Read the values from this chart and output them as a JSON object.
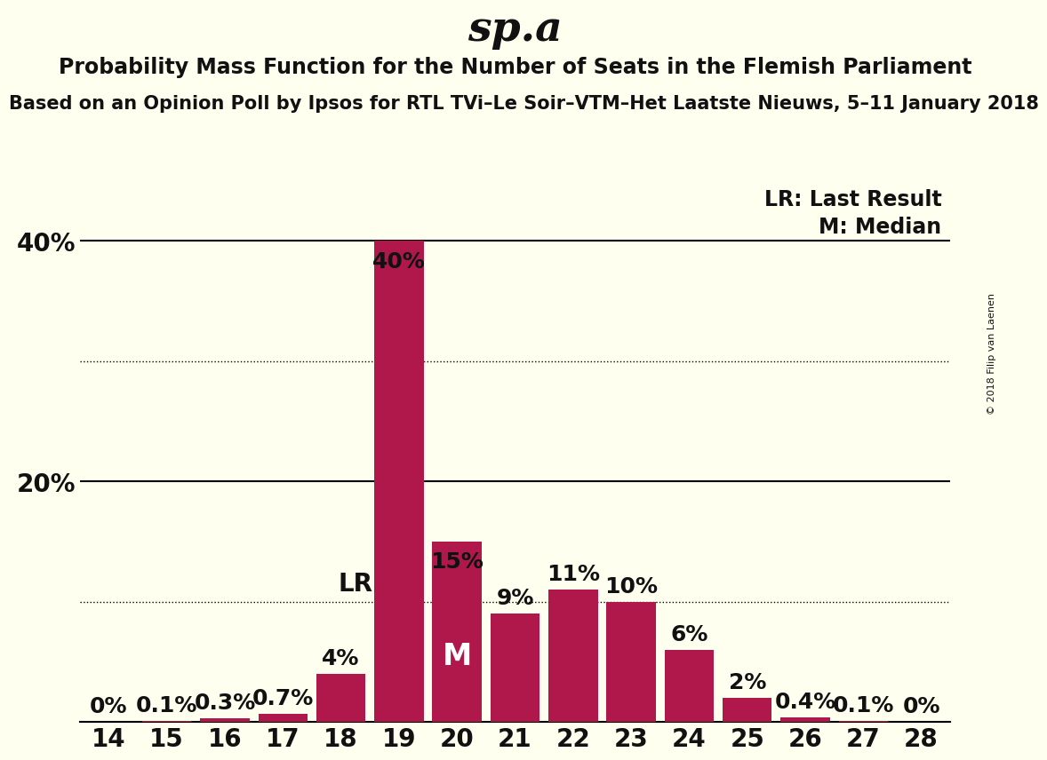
{
  "title": "sp.a",
  "subtitle": "Probability Mass Function for the Number of Seats in the Flemish Parliament",
  "subtitle2": "Based on an Opinion Poll by Ipsos for RTL TVi–Le Soir–VTM–Het Laatste Nieuws, 5–11 January 2018",
  "copyright": "© 2018 Filip van Laenen",
  "seats": [
    14,
    15,
    16,
    17,
    18,
    19,
    20,
    21,
    22,
    23,
    24,
    25,
    26,
    27,
    28
  ],
  "prob_labels": [
    "0%",
    "0.1%",
    "0.3%",
    "0.7%",
    "4%",
    "40%",
    "15%",
    "9%",
    "11%",
    "10%",
    "6%",
    "2%",
    "0.4%",
    "0.1%",
    "0%"
  ],
  "probabilities": [
    0.0,
    0.1,
    0.3,
    0.7,
    4.0,
    40.0,
    15.0,
    9.0,
    11.0,
    10.0,
    6.0,
    2.0,
    0.4,
    0.1,
    0.0
  ],
  "bar_color": "#B0174A",
  "background_color": "#FFFFF0",
  "text_color": "#111111",
  "lr_seat": 19,
  "median_seat": 20,
  "lr_label": "LR",
  "median_label": "M",
  "legend_lr": "LR: Last Result",
  "legend_m": "M: Median",
  "ylim": [
    0,
    45
  ],
  "dotted_lines": [
    10,
    30
  ],
  "solid_lines": [
    20,
    40
  ],
  "xlim_left": 13.5,
  "xlim_right": 28.5
}
